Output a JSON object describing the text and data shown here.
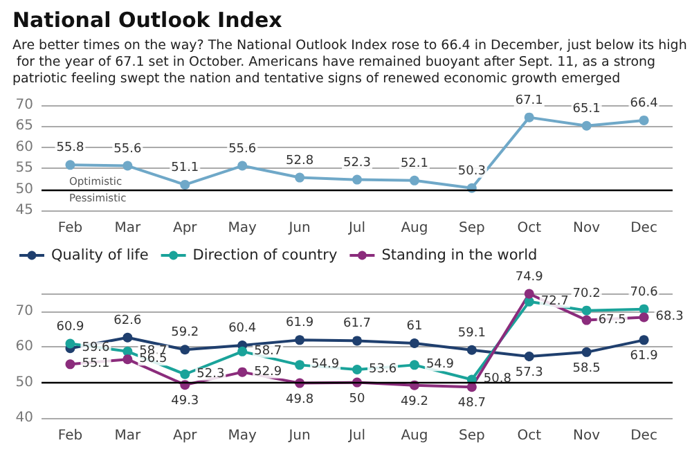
{
  "chart_data": [
    {
      "type": "line",
      "title": "National Outlook Index",
      "subtitle": "Are better times on the way? The National Outlook Index rose to 66.4 in December, just below its high for the year of 67.1 set in October. Americans have remained buoyant after Sept. 11, as a strong patriotic feeling swept the nation and tentative signs of renewed economic growth emerged",
      "categories": [
        "Feb",
        "Mar",
        "Apr",
        "May",
        "Jun",
        "Jul",
        "Aug",
        "Sep",
        "Oct",
        "Nov",
        "Dec"
      ],
      "series": [
        {
          "color": "#6fa8c8",
          "values": [
            55.8,
            55.6,
            51.1,
            55.6,
            52.8,
            52.3,
            52.1,
            50.3,
            67.1,
            65.1,
            66.4
          ]
        }
      ],
      "ylim": [
        45,
        70
      ],
      "yticks": [
        45,
        50,
        55,
        60,
        65,
        70
      ],
      "grid": "y",
      "marker": "circle",
      "data_labels": true,
      "ref_lines": [
        {
          "axis": "y",
          "value": 50,
          "color": "#000000"
        }
      ],
      "annotations": [
        {
          "text": "Optimistic",
          "y": 50
        },
        {
          "text": "Pessimistic",
          "y": 50
        }
      ]
    },
    {
      "type": "line",
      "categories": [
        "Feb",
        "Mar",
        "Apr",
        "May",
        "Jun",
        "Jul",
        "Aug",
        "Sep",
        "Oct",
        "Nov",
        "Dec"
      ],
      "series": [
        {
          "name": "Quality of life",
          "color": "#1f3f6e",
          "values": [
            59.6,
            62.6,
            59.2,
            60.4,
            61.9,
            61.7,
            61,
            59.1,
            57.3,
            58.5,
            61.9
          ]
        },
        {
          "name": "Direction of country",
          "color": "#1aa39a",
          "values": [
            60.9,
            58.7,
            52.3,
            58.7,
            54.9,
            53.6,
            54.9,
            50.8,
            72.7,
            70.2,
            70.6
          ]
        },
        {
          "name": "Standing in the world",
          "color": "#8b2c7c",
          "values": [
            55.1,
            56.5,
            49.3,
            52.9,
            49.8,
            50,
            49.2,
            48.7,
            74.9,
            67.5,
            68.3
          ]
        }
      ],
      "ylim": [
        40,
        75
      ],
      "yticks": [
        40,
        50,
        60,
        70
      ],
      "grid": "y",
      "marker": "circle",
      "data_labels": true,
      "legend": "top left",
      "ref_lines": [
        {
          "axis": "y",
          "value": 50,
          "color": "#000000"
        }
      ]
    }
  ]
}
